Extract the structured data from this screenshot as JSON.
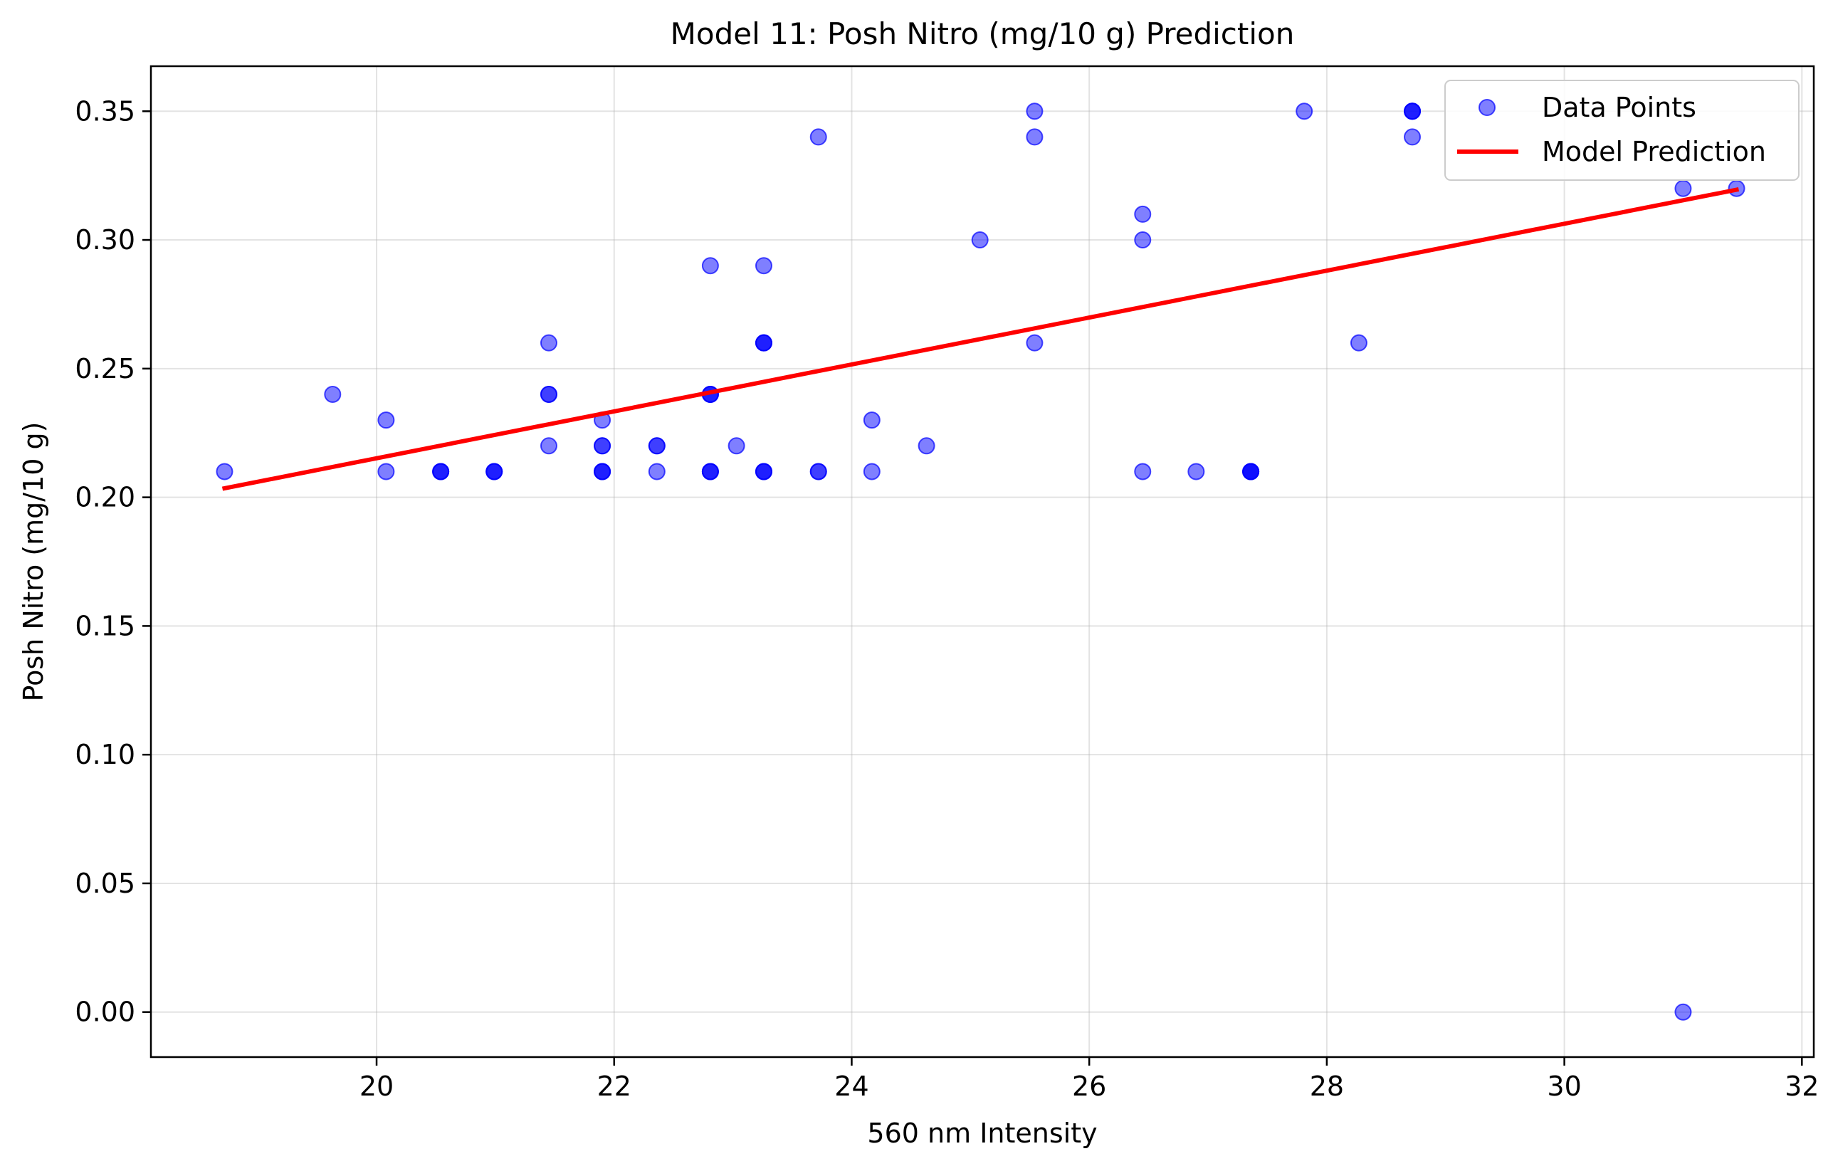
{
  "chart_data": {
    "type": "scatter",
    "title": "Model 11: Posh Nitro (mg/10 g) Prediction",
    "xlabel": "560 nm Intensity",
    "ylabel": "Posh Nitro (mg/10 g)",
    "xlim": [
      18.1,
      32.1
    ],
    "ylim": [
      -0.0175,
      0.3675
    ],
    "xticks": [
      20,
      22,
      24,
      26,
      28,
      30,
      32
    ],
    "xtick_labels": [
      "20",
      "22",
      "24",
      "26",
      "28",
      "30",
      "32"
    ],
    "yticks": [
      0.0,
      0.05,
      0.1,
      0.15,
      0.2,
      0.25,
      0.3,
      0.35
    ],
    "ytick_labels": [
      "0.00",
      "0.05",
      "0.10",
      "0.15",
      "0.20",
      "0.25",
      "0.30",
      "0.35"
    ],
    "grid": true,
    "legend_position": "top-right",
    "series": [
      {
        "name": "Data Points",
        "kind": "scatter",
        "color": "#0000ff",
        "points": [
          [
            18.72,
            0.21
          ],
          [
            19.63,
            0.24
          ],
          [
            20.08,
            0.23
          ],
          [
            20.08,
            0.21
          ],
          [
            20.54,
            0.21
          ],
          [
            20.54,
            0.21
          ],
          [
            20.54,
            0.21
          ],
          [
            20.99,
            0.21
          ],
          [
            20.99,
            0.21
          ],
          [
            20.99,
            0.21
          ],
          [
            21.45,
            0.26
          ],
          [
            21.45,
            0.24
          ],
          [
            21.45,
            0.24
          ],
          [
            21.45,
            0.22
          ],
          [
            21.9,
            0.23
          ],
          [
            21.9,
            0.22
          ],
          [
            21.9,
            0.22
          ],
          [
            21.9,
            0.21
          ],
          [
            21.9,
            0.21
          ],
          [
            21.9,
            0.21
          ],
          [
            22.36,
            0.22
          ],
          [
            22.36,
            0.22
          ],
          [
            22.36,
            0.21
          ],
          [
            22.81,
            0.29
          ],
          [
            22.81,
            0.24
          ],
          [
            22.81,
            0.24
          ],
          [
            22.81,
            0.24
          ],
          [
            22.81,
            0.21
          ],
          [
            22.81,
            0.21
          ],
          [
            22.81,
            0.21
          ],
          [
            23.03,
            0.22
          ],
          [
            23.26,
            0.29
          ],
          [
            23.26,
            0.26
          ],
          [
            23.26,
            0.26
          ],
          [
            23.26,
            0.26
          ],
          [
            23.26,
            0.21
          ],
          [
            23.26,
            0.21
          ],
          [
            23.26,
            0.21
          ],
          [
            23.72,
            0.34
          ],
          [
            23.72,
            0.21
          ],
          [
            23.72,
            0.21
          ],
          [
            24.17,
            0.23
          ],
          [
            24.17,
            0.21
          ],
          [
            24.63,
            0.22
          ],
          [
            25.08,
            0.3
          ],
          [
            25.54,
            0.35
          ],
          [
            25.54,
            0.34
          ],
          [
            25.54,
            0.26
          ],
          [
            26.45,
            0.31
          ],
          [
            26.45,
            0.3
          ],
          [
            26.45,
            0.21
          ],
          [
            26.9,
            0.21
          ],
          [
            27.36,
            0.21
          ],
          [
            27.36,
            0.21
          ],
          [
            27.36,
            0.21
          ],
          [
            27.36,
            0.21
          ],
          [
            27.81,
            0.35
          ],
          [
            28.27,
            0.26
          ],
          [
            28.72,
            0.35
          ],
          [
            28.72,
            0.35
          ],
          [
            28.72,
            0.35
          ],
          [
            28.72,
            0.34
          ],
          [
            31.0,
            0.32
          ],
          [
            31.0,
            0.0
          ],
          [
            31.45,
            0.32
          ]
        ]
      },
      {
        "name": "Model Prediction",
        "kind": "line",
        "color": "#ff0000",
        "points": [
          [
            18.72,
            0.2035
          ],
          [
            31.45,
            0.3195
          ]
        ]
      }
    ]
  }
}
